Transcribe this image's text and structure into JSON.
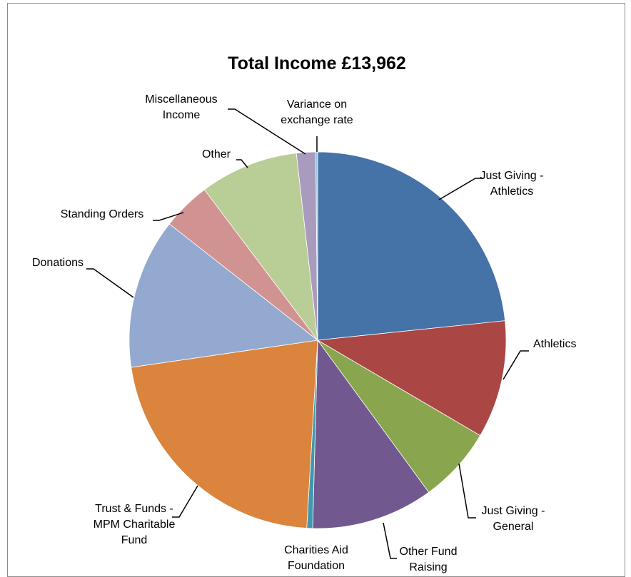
{
  "chart_data": {
    "type": "pie",
    "title": "Total Income £13,962",
    "legend": "none",
    "start_angle_deg": 0,
    "direction": "clockwise",
    "slices": [
      {
        "label": "Just Giving - Athletics",
        "value": 3260,
        "color": "#4572A7"
      },
      {
        "label": "Athletics",
        "value": 1410,
        "color": "#AA4643"
      },
      {
        "label": "Just Giving - General",
        "value": 910,
        "color": "#89A54E"
      },
      {
        "label": "Other Fund Raising",
        "value": 1460,
        "color": "#71588F"
      },
      {
        "label": "Charities Aid Foundation",
        "value": 70,
        "color": "#4198AF"
      },
      {
        "label": "Trust & Funds - MPM Charitable Fund",
        "value": 3040,
        "color": "#DB843D"
      },
      {
        "label": "Donations",
        "value": 1800,
        "color": "#93A9CF"
      },
      {
        "label": "Standing Orders",
        "value": 580,
        "color": "#D19392"
      },
      {
        "label": "Other",
        "value": 1180,
        "color": "#B9CD96"
      },
      {
        "label": "Miscellaneous Income",
        "value": 230,
        "color": "#A99BBD"
      },
      {
        "label": "Variance on exchange rate",
        "value": 22,
        "color": "#91C3D5"
      }
    ],
    "labels_lines": [
      [
        "Just Giving -",
        "Athletics"
      ],
      [
        "Athletics"
      ],
      [
        "Just Giving -",
        "General"
      ],
      [
        "Other Fund",
        "Raising"
      ],
      [
        "Charities Aid",
        "Foundation"
      ],
      [
        "Trust & Funds -",
        "MPM Charitable",
        "Fund"
      ],
      [
        "Donations"
      ],
      [
        "Standing Orders"
      ],
      [
        "Other"
      ],
      [
        "Miscellaneous",
        "Income"
      ],
      [
        "Variance on",
        "exchange rate"
      ]
    ]
  }
}
